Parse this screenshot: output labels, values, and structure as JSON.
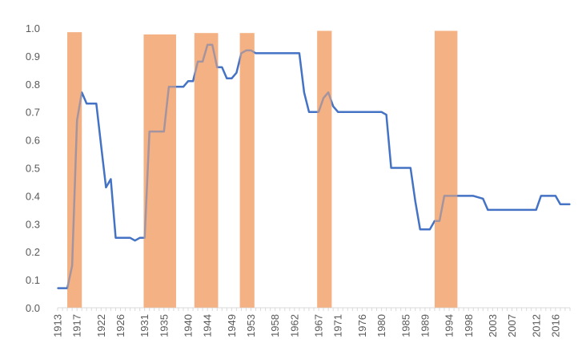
{
  "chart_data": {
    "type": "line",
    "title": "",
    "xlabel": "",
    "ylabel": "",
    "xlim": [
      1913,
      2019
    ],
    "ylim": [
      0,
      1.0
    ],
    "y_ticks": [
      "0.0",
      "0.1",
      "0.2",
      "0.3",
      "0.4",
      "0.5",
      "0.6",
      "0.7",
      "0.8",
      "0.9",
      "1.0"
    ],
    "x_tick_labels": [
      {
        "year": 1913,
        "label": "1913"
      },
      {
        "year": 1917,
        "label": "1917"
      },
      {
        "year": 1922,
        "label": "1922"
      },
      {
        "year": 1926,
        "label": "1926"
      },
      {
        "year": 1931,
        "label": "1931"
      },
      {
        "year": 1935,
        "label": "1935"
      },
      {
        "year": 1940,
        "label": "1940"
      },
      {
        "year": 1944,
        "label": "1944"
      },
      {
        "year": 1949,
        "label": "1949"
      },
      {
        "year": 1953,
        "label": "1953"
      },
      {
        "year": 1958,
        "label": "1958"
      },
      {
        "year": 1962,
        "label": "1962"
      },
      {
        "year": 1967,
        "label": "1967"
      },
      {
        "year": 1971,
        "label": "1971"
      },
      {
        "year": 1976,
        "label": "1976"
      },
      {
        "year": 1980,
        "label": "1980"
      },
      {
        "year": 1985,
        "label": "1985"
      },
      {
        "year": 1989,
        "label": "1989"
      },
      {
        "year": 1994,
        "label": "1994"
      },
      {
        "year": 1998,
        "label": "1998"
      },
      {
        "year": 2003,
        "label": "2003"
      },
      {
        "year": 2007,
        "label": "2007"
      },
      {
        "year": 2012,
        "label": "2012"
      },
      {
        "year": 2016,
        "label": "2016"
      }
    ],
    "grid": false,
    "legend": "none",
    "shaded_periods": [
      {
        "start": 1915,
        "end": 1918,
        "height": 0.985
      },
      {
        "start": 1930.8,
        "end": 1937.5,
        "height": 0.977
      },
      {
        "start": 1941.3,
        "end": 1946.2,
        "height": 0.982
      },
      {
        "start": 1950.7,
        "end": 1953.7,
        "height": 0.982
      },
      {
        "start": 1966.7,
        "end": 1969.7,
        "height": 0.99
      },
      {
        "start": 1991,
        "end": 1995.7,
        "height": 0.99
      }
    ],
    "series": [
      {
        "x": [
          1913,
          1915,
          1916,
          1917,
          1918,
          1919,
          1920,
          1921,
          1922,
          1923,
          1924,
          1925,
          1926,
          1927,
          1928,
          1929,
          1930,
          1931,
          1932,
          1933,
          1934,
          1935,
          1936,
          1937,
          1938,
          1939,
          1940,
          1941,
          1942,
          1943,
          1944,
          1945,
          1946,
          1947,
          1948,
          1949,
          1950,
          1951,
          1952,
          1953,
          1954,
          1963,
          1964,
          1965,
          1966,
          1967,
          1968,
          1969,
          1970,
          1971,
          1972,
          1980,
          1981,
          1982,
          1985,
          1986,
          1987,
          1988,
          1989,
          1990,
          1991,
          1992,
          1993,
          1999,
          2001,
          2002,
          2012,
          2013,
          2014,
          2016,
          2017,
          2019
        ],
        "values": [
          0.07,
          0.07,
          0.15,
          0.67,
          0.77,
          0.73,
          0.73,
          0.73,
          0.58,
          0.43,
          0.46,
          0.25,
          0.25,
          0.25,
          0.25,
          0.24,
          0.25,
          0.25,
          0.63,
          0.63,
          0.63,
          0.63,
          0.79,
          0.79,
          0.79,
          0.79,
          0.81,
          0.81,
          0.88,
          0.88,
          0.94,
          0.94,
          0.86,
          0.86,
          0.82,
          0.82,
          0.84,
          0.91,
          0.92,
          0.92,
          0.91,
          0.91,
          0.77,
          0.7,
          0.7,
          0.7,
          0.75,
          0.77,
          0.72,
          0.7,
          0.7,
          0.7,
          0.69,
          0.5,
          0.5,
          0.5,
          0.38,
          0.28,
          0.28,
          0.28,
          0.31,
          0.31,
          0.4,
          0.4,
          0.39,
          0.35,
          0.35,
          0.4,
          0.4,
          0.4,
          0.37,
          0.37
        ],
        "color": "#4472C4"
      }
    ],
    "colors": {
      "line": "#4472C4",
      "shade": "#F4B183",
      "axis": "#d9d9d9",
      "text": "#595959"
    }
  }
}
